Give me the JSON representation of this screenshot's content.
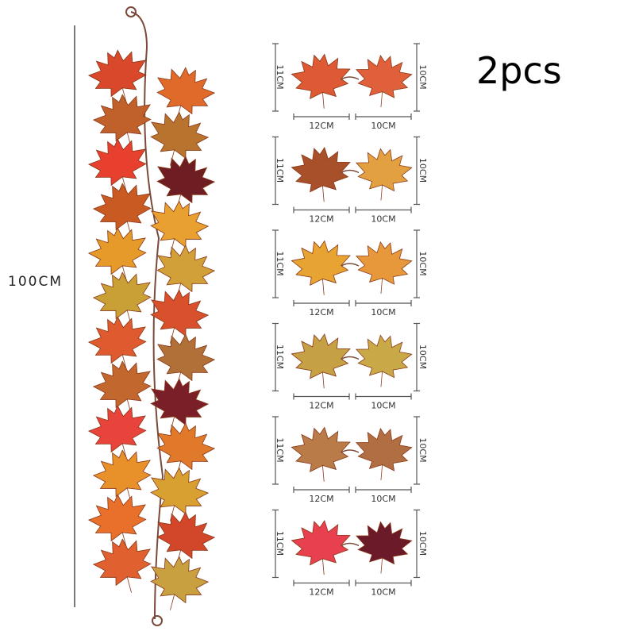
{
  "quantity_label": "2pcs",
  "total_length_label": "100CM",
  "garland_colors": [
    "#d9482a",
    "#e06a2a",
    "#c0602a",
    "#b8742e",
    "#e8402e",
    "#6e1e22",
    "#c85a22",
    "#e8a030",
    "#e69a2a",
    "#d2a038",
    "#c8a035",
    "#d8502c",
    "#e05a30",
    "#b07038",
    "#c2682e",
    "#7a1e28",
    "#e8443c",
    "#e07a2a",
    "#e8902a",
    "#d8a030",
    "#e8702a",
    "#d2462a",
    "#e06030",
    "#c8a040"
  ],
  "samples": [
    {
      "height_label": "11CM",
      "height_label_right": "10CM",
      "width_left": "12CM",
      "width_right": "10CM",
      "colors": [
        "#dd5a34",
        "#e0603c"
      ]
    },
    {
      "height_label": "11CM",
      "height_label_right": "10CM",
      "width_left": "12CM",
      "width_right": "10CM",
      "colors": [
        "#a8502a",
        "#e3a040"
      ]
    },
    {
      "height_label": "11CM",
      "height_label_right": "10CM",
      "width_left": "12CM",
      "width_right": "10CM",
      "colors": [
        "#e8a432",
        "#e6983a"
      ]
    },
    {
      "height_label": "11CM",
      "height_label_right": "10CM",
      "width_left": "12CM",
      "width_right": "10CM",
      "colors": [
        "#c6a044",
        "#c9a848"
      ]
    },
    {
      "height_label": "11CM",
      "height_label_right": "10CM",
      "width_left": "12CM",
      "width_right": "10CM",
      "colors": [
        "#b97c48",
        "#b06e42"
      ]
    },
    {
      "height_label": "11CM",
      "height_label_right": "10CM",
      "width_left": "12CM",
      "width_right": "10CM",
      "colors": [
        "#e8404e",
        "#6a1a28"
      ]
    }
  ]
}
